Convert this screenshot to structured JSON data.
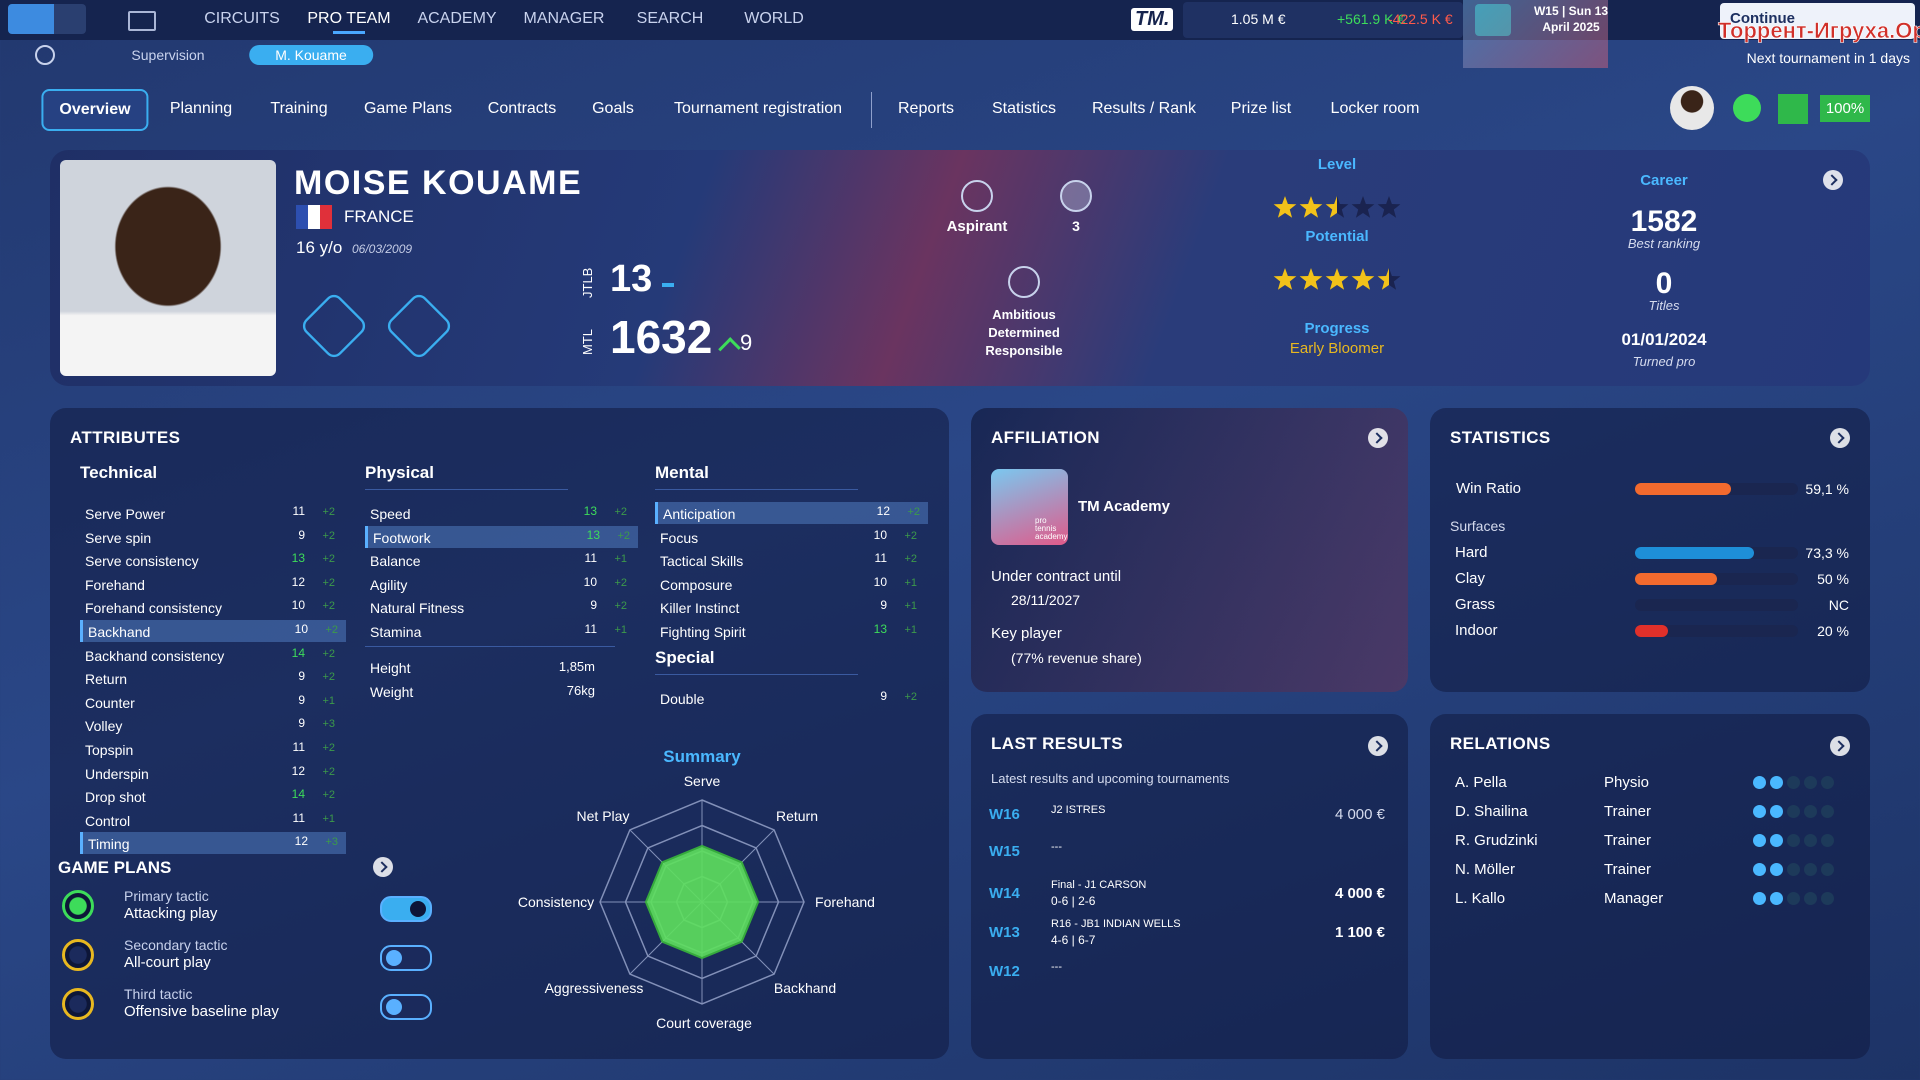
{
  "top_nav": {
    "items": [
      "CIRCUITS",
      "PRO TEAM",
      "ACADEMY",
      "MANAGER",
      "SEARCH",
      "WORLD"
    ],
    "active": 1,
    "brand": "TM.",
    "balance": "1.05 M €",
    "income": "+561.9 K €",
    "expense": "-422.5 K €",
    "date_week": "W15 | Sun 13",
    "date_month": "April 2025",
    "continue": "Continue",
    "watermark": "Торрент-Игруха.Орг",
    "next": "Next tournament in 1 days"
  },
  "sub_nav": {
    "items": [
      "Supervision",
      "M. Kouame"
    ],
    "active": 1
  },
  "tabs": {
    "items": [
      "Overview",
      "Planning",
      "Training",
      "Game Plans",
      "Contracts",
      "Goals",
      "Tournament registration",
      "Reports",
      "Statistics",
      "Results / Rank",
      "Prize list",
      "Locker room"
    ],
    "active": 0,
    "morale": "100%"
  },
  "player": {
    "name": "MOISE KOUAME",
    "country": "FRANCE",
    "age": "16 y/o",
    "dob": "06/03/2009",
    "jtlb_label": "JTLB",
    "jtlb": 13,
    "mtl_label": "MTL",
    "mtl": 1632,
    "mtl_change": 9,
    "rank": "Aspirant",
    "rank_count": 3,
    "personality": [
      "Ambitious",
      "Determined",
      "Responsible"
    ],
    "level": {
      "label": "Level",
      "stars": 2.5,
      "max": 5
    },
    "potential": {
      "label": "Potential",
      "stars": 4.5,
      "max": 5
    },
    "progress": {
      "label": "Progress",
      "value": "Early Bloomer"
    },
    "career": {
      "label": "Career",
      "best_ranking": 1582,
      "best_ranking_label": "Best ranking",
      "titles": 0,
      "titles_label": "Titles",
      "turned_pro": "01/01/2024",
      "turned_pro_label": "Turned pro"
    }
  },
  "attributes": {
    "title": "ATTRIBUTES",
    "groups": [
      {
        "name": "Technical",
        "items": [
          {
            "name": "Serve Power",
            "value": 11,
            "change": "+2"
          },
          {
            "name": "Serve spin",
            "value": 9,
            "change": "+2"
          },
          {
            "name": "Serve consistency",
            "value": 13,
            "change": "+2"
          },
          {
            "name": "Forehand",
            "value": 12,
            "change": "+2"
          },
          {
            "name": "Forehand consistency",
            "value": 10,
            "change": "+2"
          },
          {
            "name": "Backhand",
            "value": 10,
            "change": "+2",
            "highlighted": true
          },
          {
            "name": "Backhand consistency",
            "value": 14,
            "change": "+2"
          },
          {
            "name": "Return",
            "value": 9,
            "change": "+2"
          },
          {
            "name": "Counter",
            "value": 9,
            "change": "+1"
          },
          {
            "name": "Volley",
            "value": 9,
            "change": "+3"
          },
          {
            "name": "Topspin",
            "value": 11,
            "change": "+2"
          },
          {
            "name": "Underspin",
            "value": 12,
            "change": "+2"
          },
          {
            "name": "Drop shot",
            "value": 14,
            "change": "+2"
          },
          {
            "name": "Control",
            "value": 11,
            "change": "+1"
          },
          {
            "name": "Timing",
            "value": 12,
            "change": "+3",
            "highlighted": true
          }
        ]
      },
      {
        "name": "Physical",
        "items": [
          {
            "name": "Speed",
            "value": 13,
            "change": "+2"
          },
          {
            "name": "Footwork",
            "value": 13,
            "change": "+2",
            "highlighted": true
          },
          {
            "name": "Balance",
            "value": 11,
            "change": "+1"
          },
          {
            "name": "Agility",
            "value": 10,
            "change": "+2"
          },
          {
            "name": "Natural Fitness",
            "value": 9,
            "change": "+2"
          },
          {
            "name": "Stamina",
            "value": 11,
            "change": "+1"
          }
        ],
        "extra": [
          {
            "name": "Height",
            "value": "1,85m"
          },
          {
            "name": "Weight",
            "value": "76kg"
          }
        ]
      },
      {
        "name": "Mental",
        "items": [
          {
            "name": "Anticipation",
            "value": 12,
            "change": "+2",
            "highlighted": true
          },
          {
            "name": "Focus",
            "value": 10,
            "change": "+2"
          },
          {
            "name": "Tactical Skills",
            "value": 11,
            "change": "+2"
          },
          {
            "name": "Composure",
            "value": 10,
            "change": "+1"
          },
          {
            "name": "Killer Instinct",
            "value": 9,
            "change": "+1"
          },
          {
            "name": "Fighting Spirit",
            "value": 13,
            "change": "+1"
          }
        ]
      },
      {
        "name": "Special",
        "items": [
          {
            "name": "Double",
            "value": 9,
            "change": "+2"
          }
        ]
      }
    ]
  },
  "radar": {
    "title": "Summary",
    "axes": [
      "Serve",
      "Return",
      "Forehand",
      "Backhand",
      "Court coverage",
      "Aggressiveness",
      "Consistency",
      "Net Play"
    ],
    "values": [
      11,
      11,
      11,
      11,
      11,
      11,
      11,
      11
    ],
    "rlim": [
      0,
      20
    ]
  },
  "game_plans": {
    "title": "GAME PLANS",
    "items": [
      {
        "label": "Primary tactic",
        "value": "Attacking play",
        "on": true,
        "color": "#3ddc5a"
      },
      {
        "label": "Secondary tactic",
        "value": "All-court play",
        "on": false,
        "color": "#e8b820"
      },
      {
        "label": "Third tactic",
        "value": "Offensive baseline play",
        "on": false,
        "color": "#e8b820"
      }
    ]
  },
  "affiliation": {
    "title": "AFFILIATION",
    "logo_text": "pro tennis academy",
    "name": "TM Academy",
    "contract_label": "Under contract until",
    "contract_until": "28/11/2027",
    "key_label": "Key player",
    "key_detail": "(77% revenue share)"
  },
  "statistics": {
    "title": "STATISTICS",
    "win_ratio": {
      "name": "Win Ratio",
      "value": 59.1,
      "label": "59,1 %",
      "color": "#f26a2e"
    },
    "surfaces_label": "Surfaces",
    "surfaces": [
      {
        "name": "Hard",
        "value": 73.3,
        "label": "73,3 %",
        "color": "#1e8fd8"
      },
      {
        "name": "Clay",
        "value": 50,
        "label": "50 %",
        "color": "#f26a2e"
      },
      {
        "name": "Grass",
        "label": "NC"
      },
      {
        "name": "Indoor",
        "value": 20,
        "label": "20 %",
        "color": "#e0302a"
      }
    ]
  },
  "last_results": {
    "title": "LAST RESULTS",
    "subtitle": "Latest results and upcoming tournaments",
    "rows": [
      {
        "week": "W16",
        "event": "J2 ISTRES",
        "amount": "4 000 €"
      },
      {
        "week": "W15",
        "event": "---"
      },
      {
        "week": "W14",
        "event": "Final - J1 CARSON",
        "score": "0-6 | 2-6",
        "amount": "4 000 €"
      },
      {
        "week": "W13",
        "event": "R16 - JB1 INDIAN WELLS",
        "score": "4-6 | 6-7",
        "amount": "1 100 €"
      },
      {
        "week": "W12",
        "event": "---"
      }
    ]
  },
  "relations": {
    "title": "RELATIONS",
    "rows": [
      {
        "name": "A. Pella",
        "role": "Physio"
      },
      {
        "name": "D. Shailina",
        "role": "Trainer"
      },
      {
        "name": "R. Grudzinki",
        "role": "Trainer"
      },
      {
        "name": "N. Möller",
        "role": "Trainer"
      },
      {
        "name": "L. Kallo",
        "role": "Manager"
      }
    ]
  }
}
